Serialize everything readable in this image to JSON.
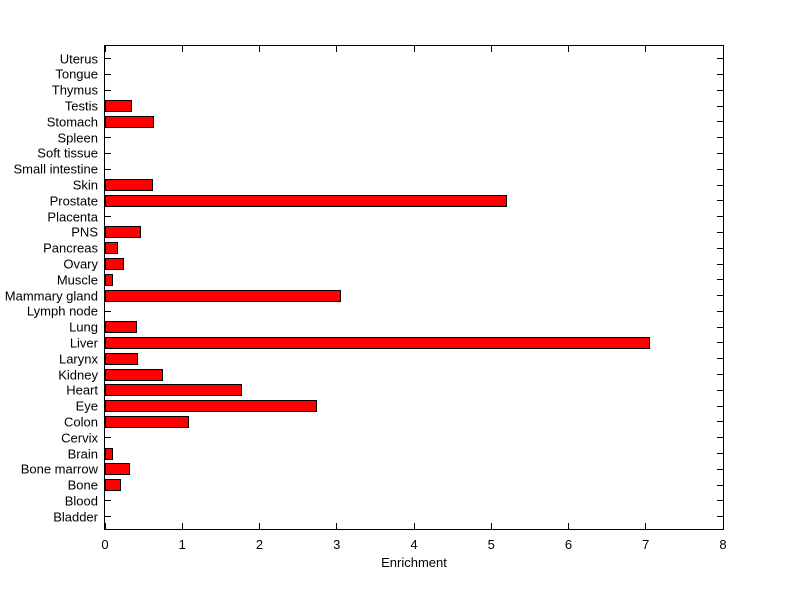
{
  "chart_data": {
    "type": "bar",
    "orientation": "horizontal",
    "title": "",
    "xlabel": "Enrichment",
    "ylabel": "",
    "xlim": [
      0,
      8
    ],
    "xticks": [
      0,
      1,
      2,
      3,
      4,
      5,
      6,
      7,
      8
    ],
    "grid": false,
    "legend": false,
    "categories": [
      "Uterus",
      "Tongue",
      "Thymus",
      "Testis",
      "Stomach",
      "Spleen",
      "Soft tissue",
      "Small intestine",
      "Skin",
      "Prostate",
      "Placenta",
      "PNS",
      "Pancreas",
      "Ovary",
      "Muscle",
      "Mammary gland",
      "Lymph node",
      "Lung",
      "Liver",
      "Larynx",
      "Kidney",
      "Heart",
      "Eye",
      "Colon",
      "Cervix",
      "Brain",
      "Bone marrow",
      "Bone",
      "Blood",
      "Bladder"
    ],
    "values": [
      0,
      0,
      0,
      0.35,
      0.64,
      0,
      0,
      0,
      0.62,
      5.2,
      0,
      0.46,
      0.17,
      0.24,
      0.11,
      3.05,
      0,
      0.41,
      7.05,
      0.43,
      0.75,
      1.77,
      2.75,
      1.09,
      0,
      0.1,
      0.32,
      0.21,
      0,
      0
    ],
    "colors": {
      "bar_fill": "#FF0000",
      "bar_edge": "#000000",
      "axis": "#000000",
      "background": "#FFFFFF"
    }
  }
}
